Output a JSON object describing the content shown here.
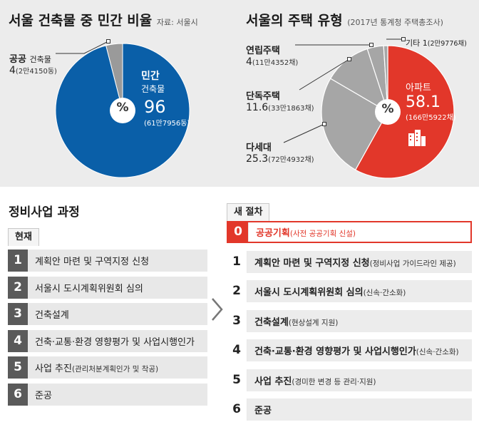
{
  "chart_data": [
    {
      "type": "pie",
      "title": "서울 건축물 중 민간 비율",
      "note": "자료: 서울시",
      "center": "%",
      "slices": [
        {
          "name": "민간",
          "sub": "건축물",
          "value": 96,
          "detail": "(61만7956동)",
          "color": "#0a5fa8"
        },
        {
          "name": "공공",
          "sub": "건축물",
          "value": 4,
          "detail": "(2만4150동)",
          "color": "#9a9a9a"
        }
      ]
    },
    {
      "type": "pie",
      "title": "서울의 주택 유형",
      "note": "(2017년 통계청 주택총조사)",
      "center": "%",
      "slices": [
        {
          "name": "아파트",
          "value": 58.1,
          "detail": "(166만5922채)",
          "color": "#e2372a"
        },
        {
          "name": "다세대",
          "value": 25.3,
          "detail": "(72만4932채)",
          "color": "#a6a6a6"
        },
        {
          "name": "단독주택",
          "value": 11.6,
          "detail": "(33만1863채)",
          "color": "#a6a6a6"
        },
        {
          "name": "연립주택",
          "value": 4,
          "detail": "(11만4352채)",
          "color": "#a6a6a6"
        },
        {
          "name": "기타",
          "value": 1,
          "detail": "(2만9776채)",
          "color": "#a6a6a6"
        }
      ]
    }
  ],
  "process": {
    "title": "정비사업 과정",
    "current": {
      "tag": "현재",
      "steps": [
        {
          "no": "1",
          "text": "계획안 마련 및 구역지정 신청"
        },
        {
          "no": "2",
          "text": "서울시 도시계획위원회 심의"
        },
        {
          "no": "3",
          "text": "건축설계"
        },
        {
          "no": "4",
          "text": "건축·교통·환경 영향평가 및 사업시행인가"
        },
        {
          "no": "5",
          "text": "사업 추진",
          "note": "(관리처분계획인가 및 착공)"
        },
        {
          "no": "6",
          "text": "준공"
        }
      ]
    },
    "new": {
      "tag": "새 절차",
      "steps": [
        {
          "no": "0",
          "text": "공공기획",
          "note": "(사전 공공기획 신설)"
        },
        {
          "no": "1",
          "text": "계획안 마련 및 구역지정 신청",
          "note": "(정비사업 가이드라인 제공)"
        },
        {
          "no": "2",
          "text": "서울시 도시계획위원회 심의",
          "note": "(신속·간소화)"
        },
        {
          "no": "3",
          "text": "건축설계",
          "note": "(현상설계 지원)"
        },
        {
          "no": "4",
          "text": "건축·교통·환경 영향평가 및 사업시행인가",
          "note": "(신속·간소화)"
        },
        {
          "no": "5",
          "text": "사업 추진",
          "note": "(경미한 변경 등 관리·지원)"
        },
        {
          "no": "6",
          "text": "준공"
        }
      ]
    }
  }
}
